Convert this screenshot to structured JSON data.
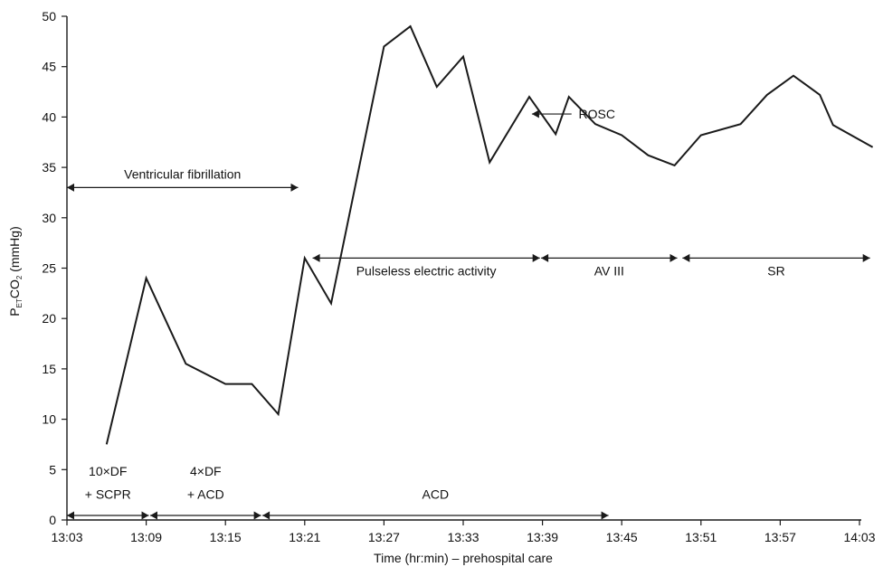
{
  "chart_data": {
    "type": "line",
    "title": "",
    "xlabel": "Time (hr:min) – prehospital care",
    "ylabel": {
      "main": "P",
      "sub": "ET",
      "mid": "CO",
      "sub2": "2",
      "rest": " (mmHg)"
    },
    "x_unit": "minutes after 13:03",
    "xlim": [
      "13:03",
      "14:03"
    ],
    "ylim": [
      0,
      50
    ],
    "x_ticks": [
      "13:03",
      "13:09",
      "13:15",
      "13:21",
      "13:27",
      "13:33",
      "13:39",
      "13:45",
      "13:51",
      "13:57",
      "14:03"
    ],
    "y_ticks": [
      0,
      5,
      10,
      15,
      20,
      25,
      30,
      35,
      40,
      45,
      50
    ],
    "grid": false,
    "series": [
      {
        "x": [
          "13:06",
          "13:09",
          "13:12",
          "13:15",
          "13:17",
          "13:19",
          "13:21",
          "13:23",
          "13:27",
          "13:29",
          "13:31",
          "13:33",
          "13:35",
          "13:38",
          "13:40",
          "13:41",
          "13:43",
          "13:45",
          "13:47",
          "13:49",
          "13:51",
          "13:54",
          "13:56",
          "13:58",
          "14:00",
          "14:01",
          "14:04"
        ],
        "values": [
          7.5,
          24,
          15.5,
          13.5,
          13.5,
          10.5,
          26,
          21.5,
          47,
          49,
          43,
          46,
          35.5,
          42,
          38.3,
          42,
          39.3,
          38.2,
          36.2,
          35.2,
          38.2,
          39.3,
          42.2,
          44.1,
          42.2,
          39.2,
          37
        ]
      }
    ],
    "annotations": {
      "vf_label": "Ventricular fibrillation",
      "pea_label": "Pulseless electric activity",
      "av3_label": "AV III",
      "sr_label": "SR",
      "rosc_label": "ROSC",
      "df10_label": "10×DF",
      "scpr_label": "+ SCPR",
      "df4_label": "4×DF",
      "acd1_label": "+ ACD",
      "acd2_label": "ACD"
    },
    "colors": {
      "line": "#1a1a1a",
      "axis": "#1a1a1a",
      "text": "#111111"
    }
  }
}
